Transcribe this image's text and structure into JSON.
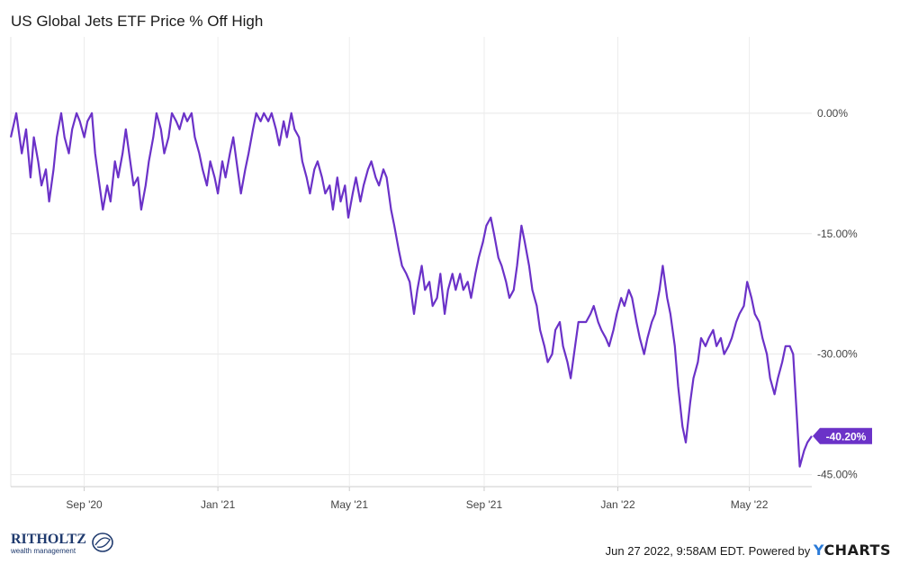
{
  "chart_data": {
    "type": "line",
    "title": "US Global Jets ETF Price % Off High",
    "ylim": [
      -46.5,
      9.5
    ],
    "y_ticks": [
      {
        "value": 0,
        "label": "0.00%"
      },
      {
        "value": -15,
        "label": "-15.00%"
      },
      {
        "value": -30,
        "label": "-30.00%"
      },
      {
        "value": -45,
        "label": "-45.00%"
      }
    ],
    "x_ticks": [
      {
        "date": "2020-09-01",
        "label": "Sep '20"
      },
      {
        "date": "2021-01-01",
        "label": "Jan '21"
      },
      {
        "date": "2021-05-01",
        "label": "May '21"
      },
      {
        "date": "2021-09-01",
        "label": "Sep '21"
      },
      {
        "date": "2022-01-01",
        "label": "Jan '22"
      },
      {
        "date": "2022-05-01",
        "label": "May '22"
      }
    ],
    "x_range": [
      "2020-06-26",
      "2022-06-27"
    ],
    "grid": true,
    "series": [
      {
        "color": "#6b32c8",
        "last_value_label": "-40.20%",
        "points": [
          [
            "2020-06-26",
            -3
          ],
          [
            "2020-07-01",
            0
          ],
          [
            "2020-07-06",
            -5
          ],
          [
            "2020-07-10",
            -2
          ],
          [
            "2020-07-14",
            -8
          ],
          [
            "2020-07-17",
            -3
          ],
          [
            "2020-07-21",
            -6
          ],
          [
            "2020-07-24",
            -9
          ],
          [
            "2020-07-28",
            -7
          ],
          [
            "2020-07-31",
            -11
          ],
          [
            "2020-08-04",
            -7
          ],
          [
            "2020-08-07",
            -3
          ],
          [
            "2020-08-11",
            0
          ],
          [
            "2020-08-14",
            -3
          ],
          [
            "2020-08-18",
            -5
          ],
          [
            "2020-08-21",
            -2
          ],
          [
            "2020-08-25",
            0
          ],
          [
            "2020-08-28",
            -1
          ],
          [
            "2020-09-01",
            -3
          ],
          [
            "2020-09-04",
            -1
          ],
          [
            "2020-09-08",
            0
          ],
          [
            "2020-09-11",
            -5
          ],
          [
            "2020-09-15",
            -9
          ],
          [
            "2020-09-18",
            -12
          ],
          [
            "2020-09-22",
            -9
          ],
          [
            "2020-09-25",
            -11
          ],
          [
            "2020-09-29",
            -6
          ],
          [
            "2020-10-02",
            -8
          ],
          [
            "2020-10-06",
            -5
          ],
          [
            "2020-10-09",
            -2
          ],
          [
            "2020-10-13",
            -6
          ],
          [
            "2020-10-16",
            -9
          ],
          [
            "2020-10-20",
            -8
          ],
          [
            "2020-10-23",
            -12
          ],
          [
            "2020-10-27",
            -9
          ],
          [
            "2020-10-30",
            -6
          ],
          [
            "2020-11-03",
            -3
          ],
          [
            "2020-11-06",
            0
          ],
          [
            "2020-11-10",
            -2
          ],
          [
            "2020-11-13",
            -5
          ],
          [
            "2020-11-17",
            -3
          ],
          [
            "2020-11-20",
            0
          ],
          [
            "2020-11-24",
            -1
          ],
          [
            "2020-11-27",
            -2
          ],
          [
            "2020-12-01",
            0
          ],
          [
            "2020-12-04",
            -1
          ],
          [
            "2020-12-08",
            0
          ],
          [
            "2020-12-11",
            -3
          ],
          [
            "2020-12-15",
            -5
          ],
          [
            "2020-12-18",
            -7
          ],
          [
            "2020-12-22",
            -9
          ],
          [
            "2020-12-25",
            -6
          ],
          [
            "2020-12-29",
            -8
          ],
          [
            "2021-01-01",
            -10
          ],
          [
            "2021-01-05",
            -6
          ],
          [
            "2021-01-08",
            -8
          ],
          [
            "2021-01-12",
            -5
          ],
          [
            "2021-01-15",
            -3
          ],
          [
            "2021-01-19",
            -7
          ],
          [
            "2021-01-22",
            -10
          ],
          [
            "2021-01-26",
            -7
          ],
          [
            "2021-01-29",
            -5
          ],
          [
            "2021-02-02",
            -2
          ],
          [
            "2021-02-05",
            0
          ],
          [
            "2021-02-09",
            -1
          ],
          [
            "2021-02-12",
            0
          ],
          [
            "2021-02-16",
            -1
          ],
          [
            "2021-02-19",
            0
          ],
          [
            "2021-02-23",
            -2
          ],
          [
            "2021-02-26",
            -4
          ],
          [
            "2021-03-02",
            -1
          ],
          [
            "2021-03-05",
            -3
          ],
          [
            "2021-03-09",
            0
          ],
          [
            "2021-03-12",
            -2
          ],
          [
            "2021-03-16",
            -3
          ],
          [
            "2021-03-19",
            -6
          ],
          [
            "2021-03-23",
            -8
          ],
          [
            "2021-03-26",
            -10
          ],
          [
            "2021-03-30",
            -7
          ],
          [
            "2021-04-02",
            -6
          ],
          [
            "2021-04-06",
            -8
          ],
          [
            "2021-04-09",
            -10
          ],
          [
            "2021-04-13",
            -9
          ],
          [
            "2021-04-16",
            -12
          ],
          [
            "2021-04-20",
            -8
          ],
          [
            "2021-04-23",
            -11
          ],
          [
            "2021-04-27",
            -9
          ],
          [
            "2021-04-30",
            -13
          ],
          [
            "2021-05-04",
            -10
          ],
          [
            "2021-05-07",
            -8
          ],
          [
            "2021-05-11",
            -11
          ],
          [
            "2021-05-14",
            -9
          ],
          [
            "2021-05-18",
            -7
          ],
          [
            "2021-05-21",
            -6
          ],
          [
            "2021-05-25",
            -8
          ],
          [
            "2021-05-28",
            -9
          ],
          [
            "2021-06-01",
            -7
          ],
          [
            "2021-06-04",
            -8
          ],
          [
            "2021-06-08",
            -12
          ],
          [
            "2021-06-11",
            -14
          ],
          [
            "2021-06-15",
            -17
          ],
          [
            "2021-06-18",
            -19
          ],
          [
            "2021-06-22",
            -20
          ],
          [
            "2021-06-25",
            -21
          ],
          [
            "2021-06-29",
            -25
          ],
          [
            "2021-07-02",
            -22
          ],
          [
            "2021-07-06",
            -19
          ],
          [
            "2021-07-09",
            -22
          ],
          [
            "2021-07-13",
            -21
          ],
          [
            "2021-07-16",
            -24
          ],
          [
            "2021-07-20",
            -23
          ],
          [
            "2021-07-23",
            -20
          ],
          [
            "2021-07-27",
            -25
          ],
          [
            "2021-07-30",
            -22
          ],
          [
            "2021-08-03",
            -20
          ],
          [
            "2021-08-06",
            -22
          ],
          [
            "2021-08-10",
            -20
          ],
          [
            "2021-08-13",
            -22
          ],
          [
            "2021-08-17",
            -21
          ],
          [
            "2021-08-20",
            -23
          ],
          [
            "2021-08-24",
            -20
          ],
          [
            "2021-08-27",
            -18
          ],
          [
            "2021-08-31",
            -16
          ],
          [
            "2021-09-03",
            -14
          ],
          [
            "2021-09-07",
            -13
          ],
          [
            "2021-09-10",
            -15
          ],
          [
            "2021-09-14",
            -18
          ],
          [
            "2021-09-17",
            -19
          ],
          [
            "2021-09-21",
            -21
          ],
          [
            "2021-09-24",
            -23
          ],
          [
            "2021-09-28",
            -22
          ],
          [
            "2021-10-01",
            -19
          ],
          [
            "2021-10-05",
            -14
          ],
          [
            "2021-10-08",
            -16
          ],
          [
            "2021-10-12",
            -19
          ],
          [
            "2021-10-15",
            -22
          ],
          [
            "2021-10-19",
            -24
          ],
          [
            "2021-10-22",
            -27
          ],
          [
            "2021-10-26",
            -29
          ],
          [
            "2021-10-29",
            -31
          ],
          [
            "2021-11-02",
            -30
          ],
          [
            "2021-11-05",
            -27
          ],
          [
            "2021-11-09",
            -26
          ],
          [
            "2021-11-12",
            -29
          ],
          [
            "2021-11-16",
            -31
          ],
          [
            "2021-11-19",
            -33
          ],
          [
            "2021-11-23",
            -29
          ],
          [
            "2021-11-26",
            -26
          ],
          [
            "2021-11-30",
            -26
          ],
          [
            "2021-12-03",
            -26
          ],
          [
            "2021-12-07",
            -25
          ],
          [
            "2021-12-10",
            -24
          ],
          [
            "2021-12-14",
            -26
          ],
          [
            "2021-12-17",
            -27
          ],
          [
            "2021-12-21",
            -28
          ],
          [
            "2021-12-24",
            -29
          ],
          [
            "2021-12-28",
            -27
          ],
          [
            "2021-12-31",
            -25
          ],
          [
            "2022-01-04",
            -23
          ],
          [
            "2022-01-07",
            -24
          ],
          [
            "2022-01-11",
            -22
          ],
          [
            "2022-01-14",
            -23
          ],
          [
            "2022-01-18",
            -26
          ],
          [
            "2022-01-21",
            -28
          ],
          [
            "2022-01-25",
            -30
          ],
          [
            "2022-01-28",
            -28
          ],
          [
            "2022-02-01",
            -26
          ],
          [
            "2022-02-04",
            -25
          ],
          [
            "2022-02-08",
            -22
          ],
          [
            "2022-02-11",
            -19
          ],
          [
            "2022-02-15",
            -23
          ],
          [
            "2022-02-18",
            -25
          ],
          [
            "2022-02-22",
            -29
          ],
          [
            "2022-02-25",
            -34
          ],
          [
            "2022-03-01",
            -39
          ],
          [
            "2022-03-04",
            -41
          ],
          [
            "2022-03-08",
            -36
          ],
          [
            "2022-03-11",
            -33
          ],
          [
            "2022-03-15",
            -31
          ],
          [
            "2022-03-18",
            -28
          ],
          [
            "2022-03-22",
            -29
          ],
          [
            "2022-03-25",
            -28
          ],
          [
            "2022-03-29",
            -27
          ],
          [
            "2022-04-01",
            -29
          ],
          [
            "2022-04-05",
            -28
          ],
          [
            "2022-04-08",
            -30
          ],
          [
            "2022-04-12",
            -29
          ],
          [
            "2022-04-15",
            -28
          ],
          [
            "2022-04-19",
            -26
          ],
          [
            "2022-04-22",
            -25
          ],
          [
            "2022-04-26",
            -24
          ],
          [
            "2022-04-29",
            -21
          ],
          [
            "2022-05-03",
            -23
          ],
          [
            "2022-05-06",
            -25
          ],
          [
            "2022-05-10",
            -26
          ],
          [
            "2022-05-13",
            -28
          ],
          [
            "2022-05-17",
            -30
          ],
          [
            "2022-05-20",
            -33
          ],
          [
            "2022-05-24",
            -35
          ],
          [
            "2022-05-27",
            -33
          ],
          [
            "2022-05-31",
            -31
          ],
          [
            "2022-06-03",
            -29
          ],
          [
            "2022-06-07",
            -29
          ],
          [
            "2022-06-10",
            -30
          ],
          [
            "2022-06-13",
            -37
          ],
          [
            "2022-06-16",
            -44
          ],
          [
            "2022-06-20",
            -42
          ],
          [
            "2022-06-23",
            -41
          ],
          [
            "2022-06-27",
            -40.2
          ]
        ]
      }
    ]
  },
  "footer": {
    "logo_text": "RITHOLTZ",
    "logo_subtext": "wealth management",
    "timestamp": "Jun 27 2022, 9:58AM EDT. Powered by",
    "brand_y": "Y",
    "brand_rest": "CHARTS"
  }
}
